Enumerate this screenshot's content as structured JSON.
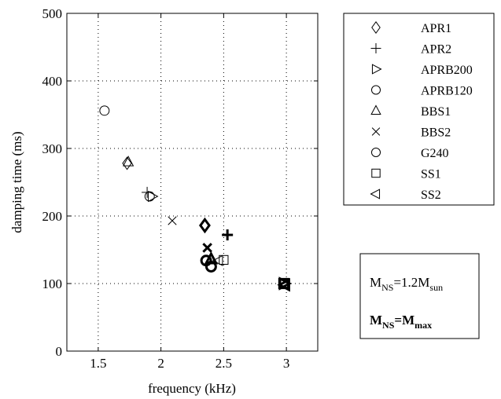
{
  "chart_data": {
    "type": "scatter",
    "xlabel": "frequency (kHz)",
    "ylabel": "damping time (ms)",
    "xlim": [
      1.25,
      3.25
    ],
    "ylim": [
      0,
      500
    ],
    "xticks": [
      "1.5",
      "2",
      "2.5",
      "3"
    ],
    "yticks": [
      "0",
      "100",
      "200",
      "300",
      "400",
      "500"
    ],
    "grid": true,
    "legend_position": "right-top",
    "series": [
      {
        "name": "APR1",
        "marker": "diamond",
        "light": [
          [
            1.73,
            278
          ]
        ],
        "bold": [
          [
            2.35,
            186
          ]
        ]
      },
      {
        "name": "APR2",
        "marker": "plus",
        "light": [
          [
            1.89,
            235
          ]
        ],
        "bold": [
          [
            2.53,
            172
          ]
        ]
      },
      {
        "name": "APRB200",
        "marker": "triangle-right",
        "light": [
          [
            1.93,
            229
          ]
        ],
        "bold": [
          [
            2.98,
            100
          ]
        ]
      },
      {
        "name": "APRB120",
        "marker": "circle",
        "light": [
          [
            1.91,
            229
          ]
        ],
        "bold": [
          [
            2.36,
            134
          ]
        ]
      },
      {
        "name": "BBS1",
        "marker": "triangle-up",
        "light": [
          [
            1.74,
            280
          ]
        ],
        "bold": [
          [
            2.4,
            136
          ]
        ]
      },
      {
        "name": "BBS2",
        "marker": "x",
        "light": [
          [
            2.09,
            193
          ]
        ],
        "bold": [
          [
            2.37,
            153
          ]
        ]
      },
      {
        "name": "G240",
        "marker": "circle",
        "light": [
          [
            1.55,
            356
          ]
        ],
        "bold": [
          [
            2.4,
            125
          ]
        ]
      },
      {
        "name": "SS1",
        "marker": "square",
        "light": [
          [
            2.5,
            135
          ]
        ],
        "bold": [
          [
            2.98,
            100
          ]
        ]
      },
      {
        "name": "SS2",
        "marker": "triangle-left",
        "light": [
          [
            2.46,
            134
          ]
        ],
        "bold": [
          [
            2.99,
            98
          ]
        ]
      }
    ]
  },
  "mass_box": {
    "line1": {
      "m": "M",
      "sub": "NS",
      "eq": "=1.2M",
      "sub2": "sun"
    },
    "line2": {
      "m": "M",
      "sub": "NS",
      "eq": "=M",
      "sub2": "max"
    }
  }
}
